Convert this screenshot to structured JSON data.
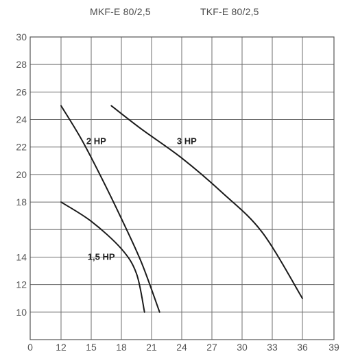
{
  "header": {
    "left_title": "MKF-E 80/2,5",
    "right_title": "TKF-E 80/2,5"
  },
  "chart_data": {
    "type": "line",
    "xlim": [
      0,
      39
    ],
    "ylim": [
      8,
      30
    ],
    "x_ticks": [
      "0",
      "12",
      "15",
      "18",
      "21",
      "24",
      "27",
      "30",
      "33",
      "36",
      "39"
    ],
    "y_ticks": [
      "30",
      "28",
      "26",
      "24",
      "22",
      "20",
      "18",
      "14",
      "12",
      "10"
    ],
    "grid": true,
    "series": [
      {
        "name": "1,5 HP",
        "x": [
          12,
          15,
          18,
          19.5,
          20.3
        ],
        "y": [
          18,
          16.6,
          14.6,
          12.8,
          10
        ]
      },
      {
        "name": "2 HP",
        "x": [
          12,
          14,
          16,
          18,
          20,
          21.8
        ],
        "y": [
          25,
          22.6,
          19.8,
          16.8,
          13.6,
          10
        ]
      },
      {
        "name": "3 HP",
        "x": [
          17,
          20,
          24,
          28,
          32,
          36
        ],
        "y": [
          25,
          23.3,
          21.2,
          18.7,
          15.8,
          11
        ]
      }
    ]
  }
}
